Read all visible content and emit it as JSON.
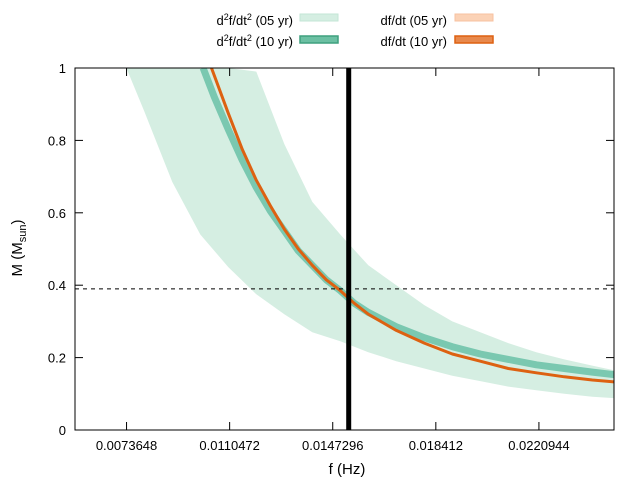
{
  "chart_data": {
    "type": "line",
    "xlabel": "f (Hz)",
    "ylabel": "M (M",
    "ylabel_sub": "sun",
    "ylabel_close": ")",
    "xlim": [
      0.0055236,
      0.024776
    ],
    "ylim": [
      0,
      1
    ],
    "x_ticks": [
      0.0073648,
      0.0110472,
      0.0147296,
      0.018412,
      0.0220944
    ],
    "x_tick_labels": [
      "0.0073648",
      "0.0110472",
      "0.0147296",
      "0.018412",
      "0.0220944"
    ],
    "y_ticks": [
      0,
      0.2,
      0.4,
      0.6,
      0.8,
      1
    ],
    "y_tick_labels": [
      "0",
      "0.2",
      "0.4",
      "0.6",
      "0.8",
      "1"
    ],
    "vertical_line_x": 0.0153,
    "horizontal_dashed_y": 0.39,
    "legend_position": "top",
    "colors": {
      "band_fill": "#d5eee2",
      "green_line": "#7ac8b0",
      "orange_line": "#dd6111",
      "orange_band_legend": "#fbd2b6",
      "vertical_line": "#000000",
      "dashed_line": "#000000"
    },
    "series": [
      {
        "name_pre": "d",
        "name_sup1": "2",
        "name_mid": "f/dt",
        "name_sup2": "2",
        "name_post": " (05 yr)",
        "kind": "band",
        "x": [
          0.00736,
          0.008,
          0.009,
          0.01,
          0.011,
          0.012,
          0.013,
          0.014,
          0.015,
          0.016,
          0.017,
          0.018,
          0.019,
          0.02,
          0.021,
          0.022,
          0.023,
          0.024,
          0.02478
        ],
        "upper": [
          1.0,
          1.0,
          1.0,
          1.0,
          1.0,
          0.99,
          0.79,
          0.63,
          0.54,
          0.455,
          0.4,
          0.345,
          0.3,
          0.27,
          0.24,
          0.215,
          0.195,
          0.178,
          0.165
        ],
        "lower": [
          1.0,
          0.88,
          0.685,
          0.54,
          0.45,
          0.375,
          0.32,
          0.27,
          0.245,
          0.215,
          0.19,
          0.17,
          0.15,
          0.135,
          0.12,
          0.11,
          0.1,
          0.092,
          0.088
        ]
      },
      {
        "name_pre": "d",
        "name_sup1": "2",
        "name_mid": "f/dt",
        "name_sup2": "2",
        "name_post": " (10 yr)",
        "kind": "line",
        "x": [
          0.0101,
          0.0105,
          0.011,
          0.0115,
          0.012,
          0.0125,
          0.013,
          0.0135,
          0.014,
          0.0145,
          0.015,
          0.0155,
          0.016,
          0.017,
          0.018,
          0.019,
          0.02,
          0.021,
          0.022,
          0.023,
          0.024,
          0.02478
        ],
        "values": [
          1.0,
          0.92,
          0.83,
          0.745,
          0.67,
          0.605,
          0.55,
          0.495,
          0.455,
          0.415,
          0.385,
          0.35,
          0.325,
          0.285,
          0.255,
          0.23,
          0.21,
          0.195,
          0.18,
          0.17,
          0.16,
          0.153
        ]
      },
      {
        "name": "df/dt (05 yr)",
        "kind": "legend_only"
      },
      {
        "name": "df/dt (10 yr)",
        "kind": "line",
        "x": [
          0.0104,
          0.011,
          0.0115,
          0.012,
          0.0125,
          0.013,
          0.0135,
          0.014,
          0.0145,
          0.015,
          0.0155,
          0.016,
          0.017,
          0.018,
          0.019,
          0.02,
          0.021,
          0.022,
          0.023,
          0.024,
          0.02478
        ],
        "values": [
          1.0,
          0.875,
          0.775,
          0.69,
          0.62,
          0.555,
          0.5,
          0.455,
          0.415,
          0.385,
          0.35,
          0.32,
          0.275,
          0.24,
          0.21,
          0.19,
          0.17,
          0.158,
          0.147,
          0.138,
          0.133
        ]
      }
    ]
  }
}
